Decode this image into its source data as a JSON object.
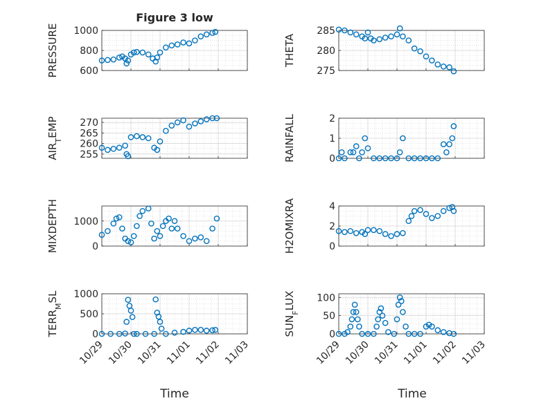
{
  "figure": {
    "title": "Figure 3 low",
    "xlabel": "Time"
  },
  "chart_data": [
    {
      "type": "scatter",
      "panel": "pressure",
      "ylabel": "PRESSURE",
      "ylim": [
        600,
        1000
      ],
      "yticks": [
        600,
        800,
        1000
      ],
      "xlim": [
        0,
        5
      ],
      "xticks": [
        "10/29",
        "10/30",
        "10/31",
        "11/01",
        "11/02",
        "11/03"
      ],
      "grid": true,
      "x": [
        0,
        0.2,
        0.4,
        0.6,
        0.7,
        0.8,
        0.85,
        0.9,
        1.0,
        1.1,
        1.2,
        1.4,
        1.6,
        1.75,
        1.85,
        1.9,
        2.0,
        2.2,
        2.4,
        2.6,
        2.8,
        3.0,
        3.2,
        3.4,
        3.6,
        3.8,
        3.9
      ],
      "y": [
        700,
        705,
        710,
        730,
        740,
        720,
        670,
        700,
        760,
        780,
        785,
        780,
        760,
        720,
        690,
        730,
        780,
        830,
        850,
        860,
        880,
        870,
        900,
        940,
        960,
        975,
        985
      ]
    },
    {
      "type": "scatter",
      "panel": "theta",
      "ylabel": "THETA",
      "ylim": [
        275,
        285
      ],
      "yticks": [
        275,
        280,
        285
      ],
      "xlim": [
        0,
        5
      ],
      "xticks": [
        "10/29",
        "10/30",
        "10/31",
        "11/01",
        "11/02",
        "11/03"
      ],
      "grid": true,
      "x": [
        0,
        0.2,
        0.4,
        0.6,
        0.8,
        0.9,
        1.0,
        1.1,
        1.2,
        1.4,
        1.6,
        1.8,
        2.0,
        2.1,
        2.2,
        2.4,
        2.6,
        2.8,
        3.0,
        3.2,
        3.4,
        3.6,
        3.8,
        3.95
      ],
      "y": [
        285.2,
        285.0,
        284.5,
        284.0,
        283.5,
        283.0,
        284.5,
        283.0,
        282.5,
        282.8,
        283.2,
        283.5,
        284.0,
        285.5,
        283.5,
        282.5,
        280.5,
        279.8,
        278.5,
        277.5,
        276.5,
        276.0,
        275.8,
        274.8
      ]
    },
    {
      "type": "scatter",
      "panel": "air_temp",
      "ylabel": "AIR_TEMP",
      "ylim": [
        253,
        272
      ],
      "yticks": [
        255,
        260,
        265,
        270
      ],
      "xlim": [
        0,
        5
      ],
      "xticks": [
        "10/29",
        "10/30",
        "10/31",
        "11/01",
        "11/02",
        "11/03"
      ],
      "grid": true,
      "x": [
        0,
        0.2,
        0.4,
        0.6,
        0.8,
        0.85,
        0.9,
        1.0,
        1.2,
        1.4,
        1.6,
        1.8,
        1.9,
        2.0,
        2.2,
        2.4,
        2.6,
        2.8,
        3.0,
        3.2,
        3.4,
        3.6,
        3.8,
        3.95
      ],
      "y": [
        258,
        257,
        257.5,
        258,
        259,
        255,
        254,
        263,
        263.5,
        263,
        262.5,
        258,
        257,
        261,
        266,
        268.5,
        270,
        271,
        268,
        269.5,
        270.5,
        271.5,
        272,
        272
      ]
    },
    {
      "type": "scatter",
      "panel": "rainfall",
      "ylabel": "RAINFALL",
      "ylim": [
        0,
        2
      ],
      "yticks": [
        0,
        1,
        2
      ],
      "xlim": [
        0,
        5
      ],
      "xticks": [
        "10/29",
        "10/30",
        "10/31",
        "11/01",
        "11/02",
        "11/03"
      ],
      "grid": true,
      "x": [
        0,
        0.1,
        0.2,
        0.4,
        0.5,
        0.6,
        0.7,
        0.8,
        0.9,
        1.0,
        1.2,
        1.4,
        1.6,
        1.8,
        2.0,
        2.1,
        2.2,
        2.4,
        2.6,
        2.8,
        3.0,
        3.2,
        3.4,
        3.6,
        3.7,
        3.8,
        3.9,
        3.95
      ],
      "y": [
        0,
        0.3,
        0,
        0.3,
        0.3,
        0.6,
        0,
        0.3,
        1.0,
        0.5,
        0,
        0,
        0,
        0,
        0,
        0.3,
        1.0,
        0,
        0,
        0,
        0,
        0,
        0,
        0.7,
        0.3,
        0.7,
        1.0,
        1.6
      ]
    },
    {
      "type": "scatter",
      "panel": "mixdepth",
      "ylabel": "MIXDEPTH",
      "ylim": [
        0,
        1600
      ],
      "yticks": [
        0,
        1000
      ],
      "xlim": [
        0,
        5
      ],
      "xticks": [
        "10/29",
        "10/30",
        "10/31",
        "11/01",
        "11/02",
        "11/03"
      ],
      "grid": true,
      "x": [
        0,
        0.2,
        0.4,
        0.5,
        0.6,
        0.7,
        0.8,
        0.9,
        1.0,
        1.1,
        1.2,
        1.3,
        1.4,
        1.6,
        1.7,
        1.8,
        1.9,
        2.0,
        2.1,
        2.2,
        2.3,
        2.4,
        2.5,
        2.6,
        2.8,
        3.0,
        3.2,
        3.4,
        3.6,
        3.8,
        3.95
      ],
      "y": [
        450,
        600,
        900,
        1100,
        1150,
        700,
        300,
        200,
        150,
        400,
        800,
        1200,
        1400,
        1500,
        900,
        300,
        600,
        400,
        800,
        1000,
        1100,
        700,
        1000,
        700,
        400,
        200,
        300,
        350,
        200,
        700,
        1100
      ]
    },
    {
      "type": "scatter",
      "panel": "h2omixra",
      "ylabel": "H2OMIXRA",
      "ylim": [
        0,
        4
      ],
      "yticks": [
        0,
        2,
        4
      ],
      "xlim": [
        0,
        5
      ],
      "xticks": [
        "10/29",
        "10/30",
        "10/31",
        "11/01",
        "11/02",
        "11/03"
      ],
      "grid": true,
      "x": [
        0,
        0.2,
        0.4,
        0.6,
        0.8,
        0.9,
        1.0,
        1.2,
        1.4,
        1.6,
        1.8,
        2.0,
        2.2,
        2.4,
        2.5,
        2.6,
        2.8,
        3.0,
        3.2,
        3.4,
        3.6,
        3.8,
        3.9,
        3.95
      ],
      "y": [
        1.5,
        1.4,
        1.5,
        1.3,
        1.4,
        1.2,
        1.6,
        1.6,
        1.5,
        1.2,
        1.0,
        1.2,
        1.3,
        2.5,
        3.0,
        3.5,
        3.6,
        3.2,
        2.8,
        3.0,
        3.5,
        3.8,
        3.9,
        3.5
      ]
    },
    {
      "type": "scatter",
      "panel": "terr_msl",
      "ylabel": "TERR_MSL",
      "ylim": [
        0,
        1000
      ],
      "yticks": [
        0,
        500,
        1000
      ],
      "xlim": [
        0,
        5
      ],
      "xticks": [
        "10/29",
        "10/30",
        "10/31",
        "11/01",
        "11/02",
        "11/03"
      ],
      "grid": true,
      "x": [
        0,
        0.3,
        0.6,
        0.8,
        0.85,
        0.9,
        0.95,
        1.0,
        1.05,
        1.1,
        1.2,
        1.5,
        1.8,
        1.85,
        1.9,
        1.95,
        2.0,
        2.05,
        2.2,
        2.5,
        2.8,
        3.0,
        3.2,
        3.4,
        3.6,
        3.8,
        3.9
      ],
      "y": [
        0,
        0,
        0,
        10,
        300,
        850,
        700,
        580,
        420,
        0,
        0,
        0,
        0,
        860,
        530,
        430,
        300,
        130,
        0,
        30,
        50,
        80,
        100,
        100,
        80,
        90,
        100
      ]
    },
    {
      "type": "scatter",
      "panel": "sun_flux",
      "ylabel": "SUN_FLUX",
      "ylim": [
        0,
        110
      ],
      "yticks": [
        0,
        50,
        100
      ],
      "xlim": [
        0,
        5
      ],
      "xticks": [
        "10/29",
        "10/30",
        "10/31",
        "11/01",
        "11/02",
        "11/03"
      ],
      "grid": true,
      "x": [
        0,
        0.2,
        0.3,
        0.4,
        0.45,
        0.5,
        0.55,
        0.6,
        0.65,
        0.7,
        0.8,
        1.0,
        1.2,
        1.3,
        1.35,
        1.4,
        1.45,
        1.5,
        1.6,
        1.7,
        1.9,
        2.0,
        2.05,
        2.1,
        2.15,
        2.2,
        2.3,
        2.4,
        2.6,
        2.8,
        3.0,
        3.1,
        3.2,
        3.4,
        3.6,
        3.8,
        3.95
      ],
      "y": [
        0,
        0,
        5,
        20,
        40,
        60,
        80,
        60,
        40,
        20,
        0,
        0,
        0,
        20,
        40,
        60,
        70,
        50,
        30,
        5,
        0,
        40,
        80,
        100,
        90,
        60,
        20,
        0,
        0,
        0,
        20,
        25,
        20,
        10,
        5,
        2,
        0
      ]
    }
  ]
}
